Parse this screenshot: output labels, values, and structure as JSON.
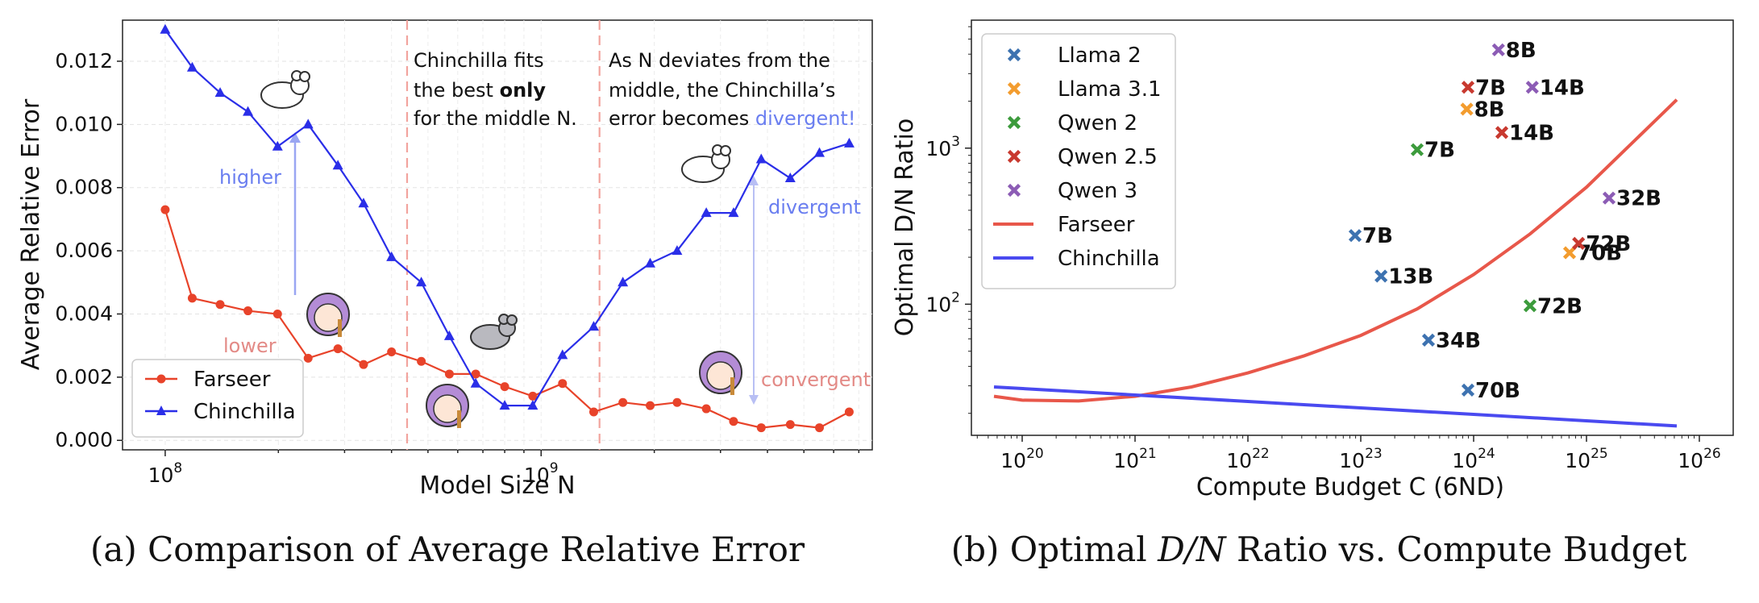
{
  "colors": {
    "farseer_left": "#e8432a",
    "chinchilla_left": "#2a2ee8",
    "farseer_right": "#e8574a",
    "chinchilla_right": "#4a4af0",
    "llama2": "#3d72b0",
    "llama31": "#f39c2e",
    "qwen2": "#3c9b3c",
    "qwen25": "#c8392f",
    "qwen3": "#8c5cb5",
    "higher": "#6a7ef0",
    "lower": "#e38a86",
    "divider": "#f2a49e"
  },
  "chart_data": [
    {
      "type": "line",
      "caption": "(a) Comparison of Average Relative Error",
      "xlabel": "Model Size N",
      "ylabel": "Average Relative Error",
      "xscale": "log",
      "xlim": [
        77000000.0,
        7600000000.0
      ],
      "ylim": [
        -0.0003,
        0.0133
      ],
      "xticks": [
        {
          "value": 100000000.0,
          "base": "10",
          "exp": "8"
        },
        {
          "value": 1000000000.0,
          "base": "10",
          "exp": "9"
        }
      ],
      "yticks": [
        0.0,
        0.002,
        0.004,
        0.006,
        0.008,
        0.01,
        0.012
      ],
      "ytick_labels": [
        "0.000",
        "0.002",
        "0.004",
        "0.006",
        "0.008",
        "0.010",
        "0.012"
      ],
      "grid": true,
      "legend": "bottom-left",
      "dividers": [
        440000000.0,
        1430000000.0
      ],
      "series": [
        {
          "name": "Farseer",
          "marker": "circle",
          "x": [
            100000000.0,
            118000000.0,
            140000000.0,
            166000000.0,
            199000000.0,
            240000000.0,
            288000000.0,
            337000000.0,
            400000000.0,
            480000000.0,
            570000000.0,
            670000000.0,
            800000000.0,
            950000000.0,
            1140000000.0,
            1380000000.0,
            1650000000.0,
            1950000000.0,
            2300000000.0,
            2750000000.0,
            3250000000.0,
            3850000000.0,
            4600000000.0,
            5500000000.0,
            6600000000.0
          ],
          "values": [
            0.0073,
            0.0045,
            0.0043,
            0.0041,
            0.004,
            0.0026,
            0.0029,
            0.0024,
            0.0028,
            0.0025,
            0.0021,
            0.0021,
            0.0017,
            0.0014,
            0.0018,
            0.0009,
            0.0012,
            0.0011,
            0.0012,
            0.001,
            0.0006,
            0.0004,
            0.0005,
            0.0004,
            0.0009
          ]
        },
        {
          "name": "Chinchilla",
          "marker": "triangle",
          "x": [
            100000000.0,
            118000000.0,
            140000000.0,
            166000000.0,
            199000000.0,
            240000000.0,
            288000000.0,
            337000000.0,
            400000000.0,
            480000000.0,
            570000000.0,
            670000000.0,
            800000000.0,
            950000000.0,
            1140000000.0,
            1380000000.0,
            1650000000.0,
            1950000000.0,
            2300000000.0,
            2750000000.0,
            3250000000.0,
            3850000000.0,
            4600000000.0,
            5500000000.0,
            6600000000.0
          ],
          "values": [
            0.013,
            0.0118,
            0.011,
            0.0104,
            0.0093,
            0.01,
            0.0087,
            0.0075,
            0.0058,
            0.005,
            0.0033,
            0.0018,
            0.0011,
            0.0011,
            0.0027,
            0.0036,
            0.005,
            0.0056,
            0.006,
            0.0072,
            0.0072,
            0.0089,
            0.0083,
            0.0091,
            0.0094
          ]
        }
      ],
      "annotations": {
        "middle_box": [
          "Chinchilla fits",
          "the best",
          "only",
          "for the middle N."
        ],
        "right_box_line1": "As N deviates from the",
        "right_box_line2": "middle, the Chinchilla’s",
        "right_box_line3a": "error becomes ",
        "right_box_line3b": "divergent!",
        "higher": "higher",
        "lower": "lower",
        "divergent": "divergent",
        "convergent": "convergent"
      }
    },
    {
      "type": "scatter",
      "caption_prefix": "(b) Optimal ",
      "caption_math": "D/N",
      "caption_suffix": " Ratio vs. Compute Budget",
      "xlabel": "Compute Budget C (6ND)",
      "ylabel": "Optimal D/N Ratio",
      "xscale": "log",
      "yscale": "log",
      "xlim_log10": [
        19.55,
        26.3
      ],
      "ylim_log10": [
        1.16,
        3.82
      ],
      "xticks": [
        {
          "exp10": 20,
          "base": "10",
          "exp": "20"
        },
        {
          "exp10": 21,
          "base": "10",
          "exp": "21"
        },
        {
          "exp10": 22,
          "base": "10",
          "exp": "22"
        },
        {
          "exp10": 23,
          "base": "10",
          "exp": "23"
        },
        {
          "exp10": 24,
          "base": "10",
          "exp": "24"
        },
        {
          "exp10": 25,
          "base": "10",
          "exp": "25"
        },
        {
          "exp10": 26,
          "base": "10",
          "exp": "26"
        }
      ],
      "yticks": [
        {
          "exp10": 2,
          "base": "10",
          "exp": "2"
        },
        {
          "exp10": 3,
          "base": "10",
          "exp": "3"
        }
      ],
      "legend": "top-left",
      "models": [
        {
          "family": "Llama 2",
          "color_key": "llama2",
          "points": [
            {
              "label": "7B",
              "x_log10": 22.95,
              "y_log10": 2.44
            },
            {
              "label": "13B",
              "x_log10": 23.18,
              "y_log10": 2.18
            },
            {
              "label": "34B",
              "x_log10": 23.6,
              "y_log10": 1.77
            },
            {
              "label": "70B",
              "x_log10": 23.95,
              "y_log10": 1.45
            }
          ]
        },
        {
          "family": "Llama 3.1",
          "color_key": "llama31",
          "points": [
            {
              "label": "8B",
              "x_log10": 23.94,
              "y_log10": 3.25
            },
            {
              "label": "70B",
              "x_log10": 24.85,
              "y_log10": 2.33
            }
          ]
        },
        {
          "family": "Qwen 2",
          "color_key": "qwen2",
          "points": [
            {
              "label": "7B",
              "x_log10": 23.5,
              "y_log10": 2.99
            },
            {
              "label": "72B",
              "x_log10": 24.5,
              "y_log10": 1.99
            }
          ]
        },
        {
          "family": "Qwen 2.5",
          "color_key": "qwen25",
          "points": [
            {
              "label": "7B",
              "x_log10": 23.95,
              "y_log10": 3.39
            },
            {
              "label": "14B",
              "x_log10": 24.25,
              "y_log10": 3.1
            },
            {
              "label": "72B",
              "x_log10": 24.93,
              "y_log10": 2.39
            }
          ]
        },
        {
          "family": "Qwen 3",
          "color_key": "qwen3",
          "points": [
            {
              "label": "8B",
              "x_log10": 24.22,
              "y_log10": 3.63
            },
            {
              "label": "14B",
              "x_log10": 24.52,
              "y_log10": 3.39
            },
            {
              "label": "32B",
              "x_log10": 25.2,
              "y_log10": 2.68
            }
          ]
        }
      ],
      "series": [
        {
          "name": "Farseer",
          "x_log10": [
            19.75,
            20.0,
            20.5,
            21.0,
            21.5,
            22.0,
            22.5,
            23.0,
            23.5,
            24.0,
            24.5,
            25.0,
            25.5,
            25.8
          ],
          "y_log10": [
            1.41,
            1.385,
            1.38,
            1.41,
            1.47,
            1.56,
            1.67,
            1.8,
            1.97,
            2.19,
            2.45,
            2.75,
            3.1,
            3.31
          ]
        },
        {
          "name": "Chinchilla",
          "x_log10": [
            19.75,
            25.8
          ],
          "y_log10": [
            1.47,
            1.22
          ]
        }
      ]
    }
  ]
}
